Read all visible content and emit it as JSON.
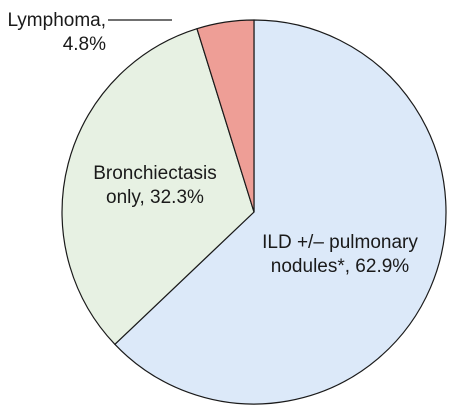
{
  "chart_data": {
    "type": "pie",
    "title": "",
    "start": "top",
    "direction": "clockwise",
    "slices": [
      {
        "name": "ILD +/– pulmonary nodules*",
        "value": 62.9,
        "label_lines": [
          "ILD +/– pulmonary",
          "nodules*, 62.9%"
        ],
        "color": "#dce9f9",
        "label_placement": "inside"
      },
      {
        "name": "Bronchiectasis only",
        "value": 32.3,
        "label_lines": [
          "Bronchiectasis",
          "only, 32.3%"
        ],
        "color": "#e7f1e3",
        "label_placement": "inside"
      },
      {
        "name": "Lymphoma",
        "value": 4.8,
        "label_lines": [
          "Lymphoma,",
          "4.8%"
        ],
        "color": "#ee9e96",
        "label_placement": "outside-top-left"
      }
    ]
  }
}
